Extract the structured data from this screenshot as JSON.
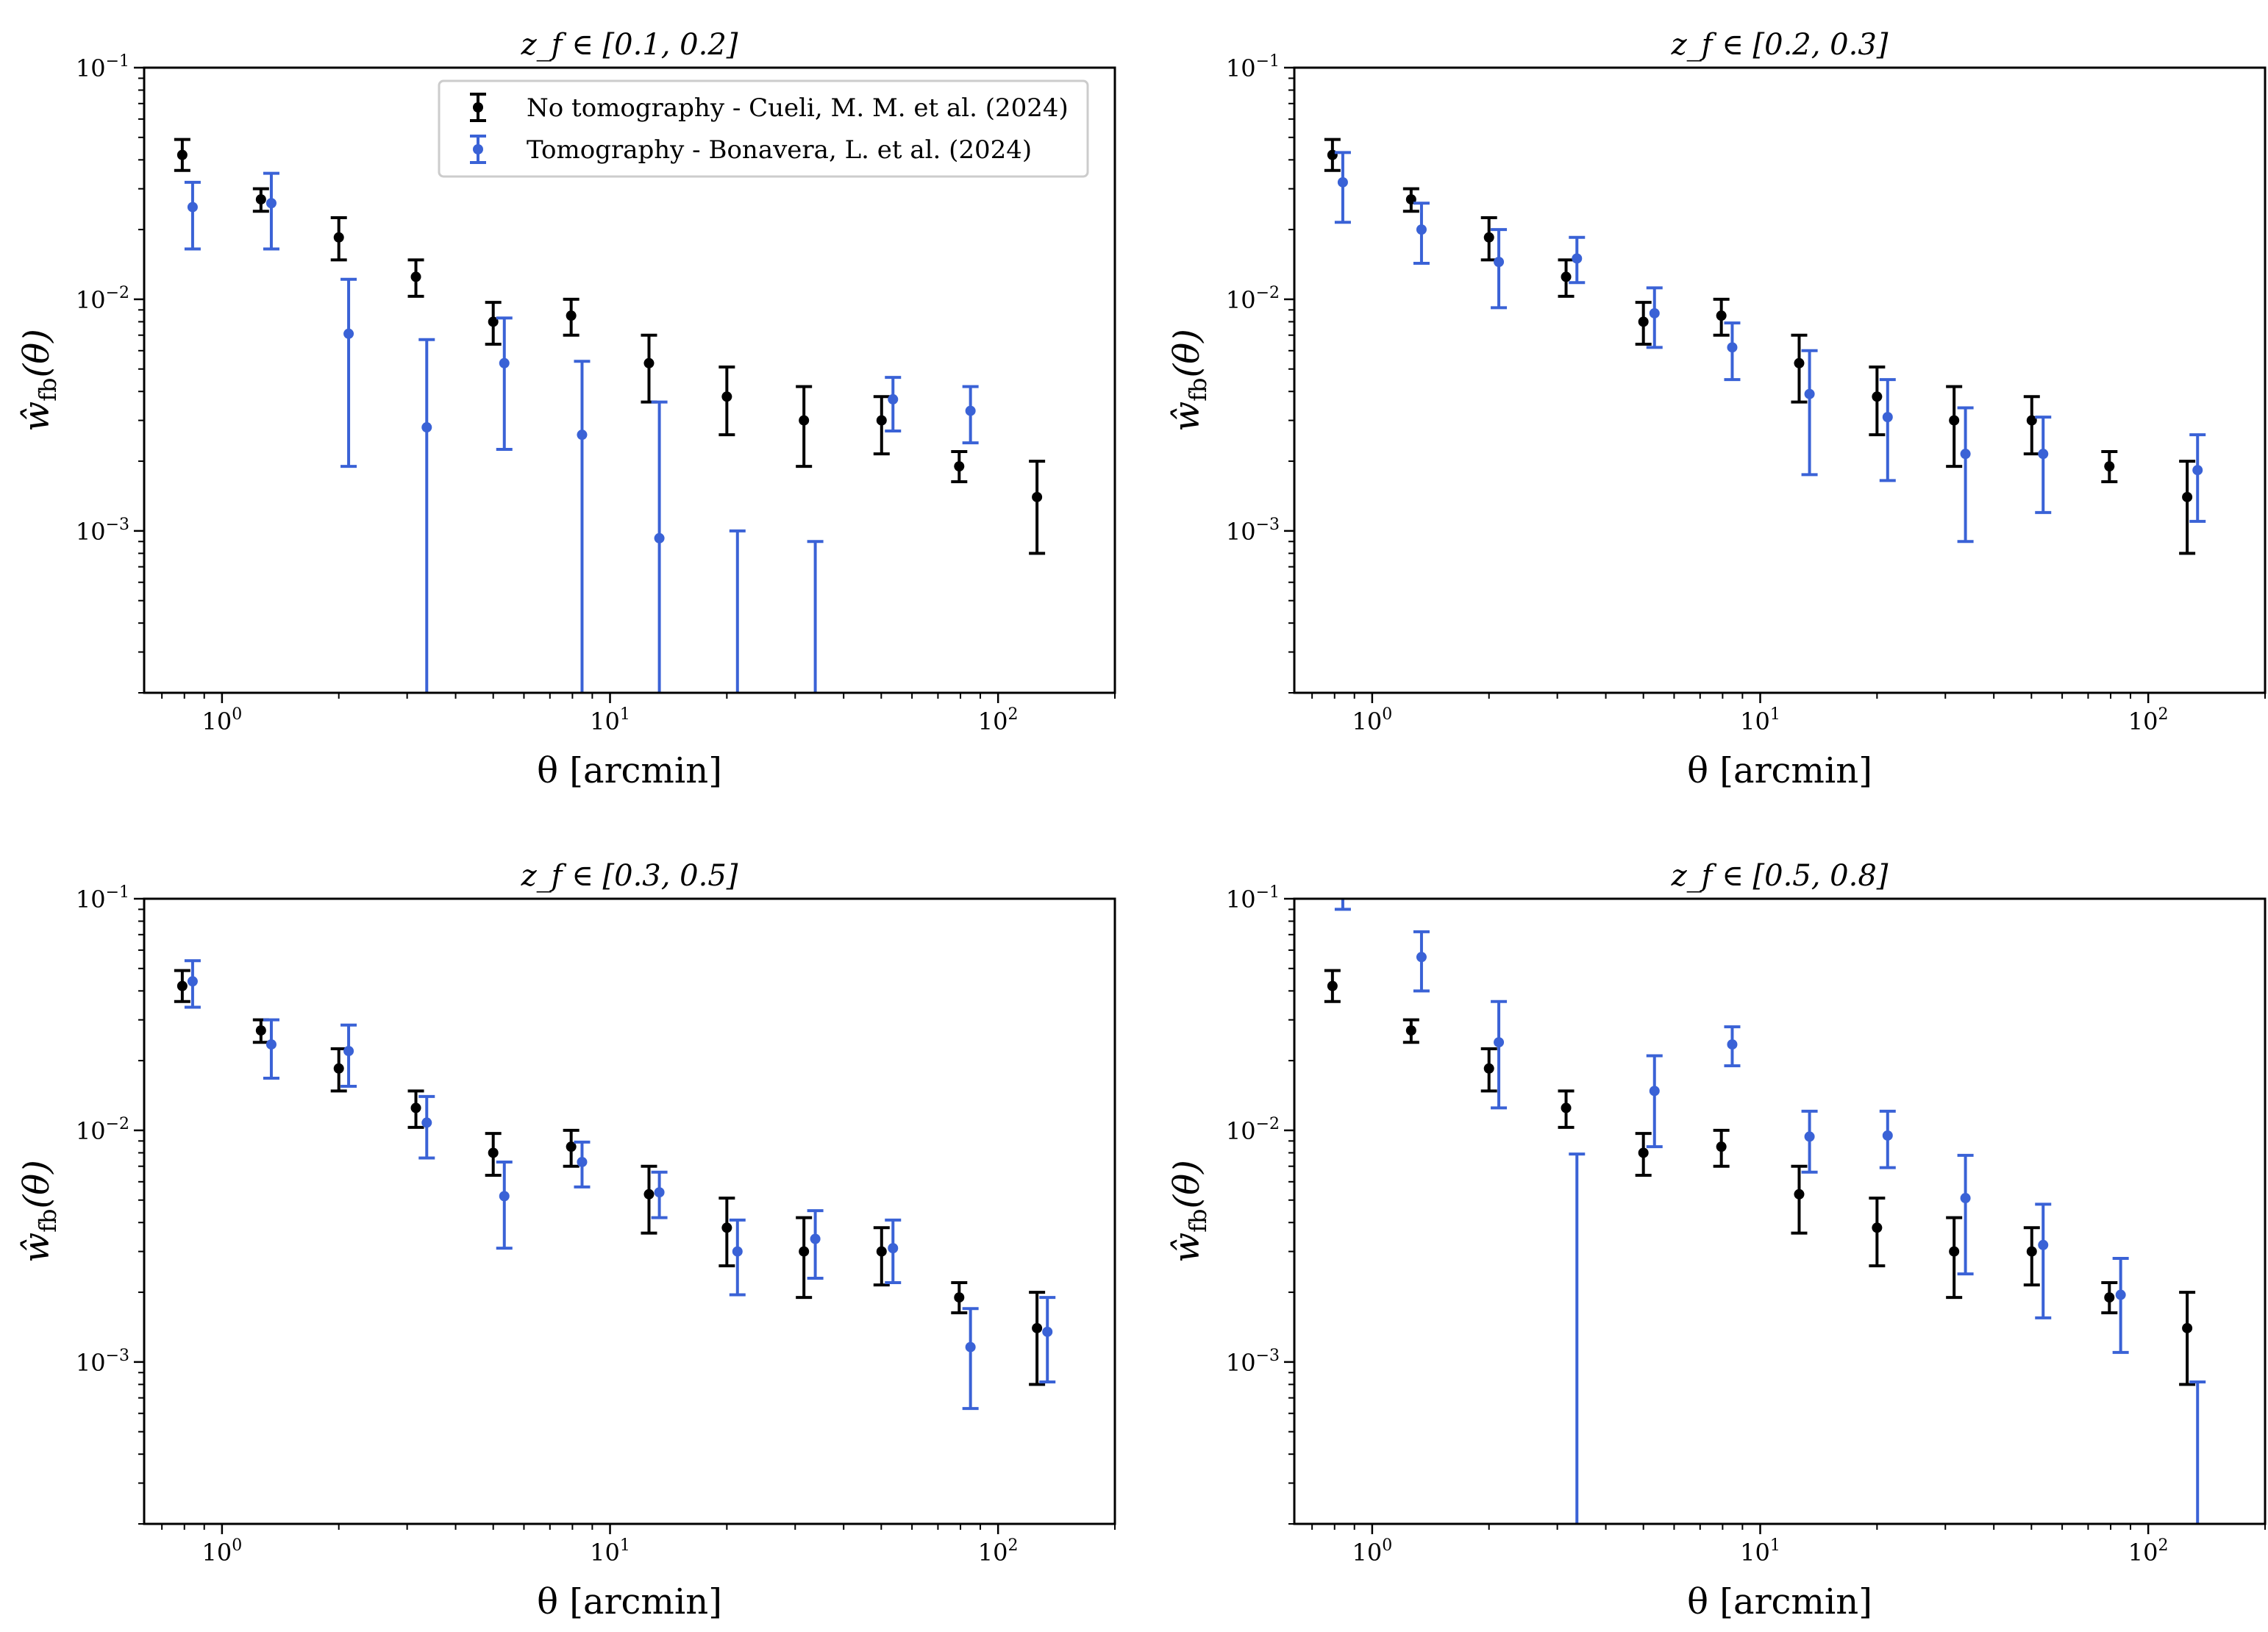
{
  "figure": {
    "xlabel": "θ [arcmin]",
    "ylabel": "ŵ",
    "ylabel_sub": "fb",
    "ylabel_arg": "(θ)"
  },
  "legend": {
    "entries": [
      {
        "label": "No tomography - Cueli, M. M. et al. (2024)",
        "color": "#000000"
      },
      {
        "label": "Tomography - Bonavera, L. et al. (2024)",
        "color": "#3a62d6"
      }
    ]
  },
  "chart_data": [
    {
      "type": "scatter",
      "title": "z_f ∈ [0.1, 0.2]",
      "xscale": "log",
      "yscale": "log",
      "xlim": [
        0.63,
        200
      ],
      "ylim": [
        0.0002,
        0.1
      ],
      "xticks": [
        {
          "label_base": "10",
          "label_exp": "0"
        },
        {
          "label_base": "10",
          "label_exp": "1"
        },
        {
          "label_base": "10",
          "label_exp": "2"
        }
      ],
      "yticks": [
        {
          "label_base": "10",
          "label_exp": "−1"
        },
        {
          "label_base": "10",
          "label_exp": "−2"
        },
        {
          "label_base": "10",
          "label_exp": "−3"
        }
      ],
      "series": [
        {
          "name": "No tomography - Cueli, M. M. et al. (2024)",
          "color": "#000000",
          "points": [
            {
              "x": 0.79,
              "y": 0.042,
              "lo": 0.036,
              "hi": 0.049
            },
            {
              "x": 1.26,
              "y": 0.027,
              "lo": 0.024,
              "hi": 0.03
            },
            {
              "x": 2.0,
              "y": 0.0185,
              "lo": 0.0148,
              "hi": 0.0225
            },
            {
              "x": 3.16,
              "y": 0.0125,
              "lo": 0.0103,
              "hi": 0.0148
            },
            {
              "x": 5.0,
              "y": 0.008,
              "lo": 0.0064,
              "hi": 0.0097
            },
            {
              "x": 7.94,
              "y": 0.0085,
              "lo": 0.007,
              "hi": 0.01
            },
            {
              "x": 12.6,
              "y": 0.0053,
              "lo": 0.0036,
              "hi": 0.007
            },
            {
              "x": 20.0,
              "y": 0.0038,
              "lo": 0.0026,
              "hi": 0.0051
            },
            {
              "x": 31.6,
              "y": 0.003,
              "lo": 0.0019,
              "hi": 0.0042
            },
            {
              "x": 50.1,
              "y": 0.003,
              "lo": 0.00215,
              "hi": 0.0038
            },
            {
              "x": 79.4,
              "y": 0.0019,
              "lo": 0.00163,
              "hi": 0.0022
            },
            {
              "x": 126,
              "y": 0.0014,
              "lo": 0.0008,
              "hi": 0.002
            }
          ]
        },
        {
          "name": "Tomography - Bonavera, L. et al. (2024)",
          "color": "#3a62d6",
          "points": [
            {
              "x": 0.84,
              "y": 0.025,
              "lo": 0.0165,
              "hi": 0.032
            },
            {
              "x": 1.34,
              "y": 0.026,
              "lo": 0.0165,
              "hi": 0.035
            },
            {
              "x": 2.12,
              "y": 0.0071,
              "lo": 0.0019,
              "hi": 0.0122
            },
            {
              "x": 3.37,
              "y": 0.0028,
              "lo": 0.0002,
              "hi": 0.0067
            },
            {
              "x": 5.34,
              "y": 0.0053,
              "lo": 0.00225,
              "hi": 0.0083
            },
            {
              "x": 8.47,
              "y": 0.0026,
              "lo": 0.0002,
              "hi": 0.0054
            },
            {
              "x": 13.4,
              "y": 0.00093,
              "lo": 0.0002,
              "hi": 0.0036
            },
            {
              "x": 21.3,
              "y": null,
              "lo": 0.0002,
              "hi": 0.001
            },
            {
              "x": 33.8,
              "y": null,
              "lo": 0.0002,
              "hi": 0.0009
            },
            {
              "x": 53.6,
              "y": 0.0037,
              "lo": 0.0027,
              "hi": 0.0046
            },
            {
              "x": 84.9,
              "y": 0.0033,
              "lo": 0.0024,
              "hi": 0.0042
            }
          ]
        }
      ]
    },
    {
      "type": "scatter",
      "title": "z_f ∈ [0.2, 0.3]",
      "xscale": "log",
      "yscale": "log",
      "xlim": [
        0.63,
        200
      ],
      "ylim": [
        0.0002,
        0.1
      ],
      "xticks": [
        {
          "label_base": "10",
          "label_exp": "0"
        },
        {
          "label_base": "10",
          "label_exp": "1"
        },
        {
          "label_base": "10",
          "label_exp": "2"
        }
      ],
      "yticks": [
        {
          "label_base": "10",
          "label_exp": "−1"
        },
        {
          "label_base": "10",
          "label_exp": "−2"
        },
        {
          "label_base": "10",
          "label_exp": "−3"
        }
      ],
      "series": [
        {
          "name": "No tomography - Cueli, M. M. et al. (2024)",
          "color": "#000000",
          "points": [
            {
              "x": 0.79,
              "y": 0.042,
              "lo": 0.036,
              "hi": 0.049
            },
            {
              "x": 1.26,
              "y": 0.027,
              "lo": 0.024,
              "hi": 0.03
            },
            {
              "x": 2.0,
              "y": 0.0185,
              "lo": 0.0148,
              "hi": 0.0225
            },
            {
              "x": 3.16,
              "y": 0.0125,
              "lo": 0.0103,
              "hi": 0.0148
            },
            {
              "x": 5.0,
              "y": 0.008,
              "lo": 0.0064,
              "hi": 0.0097
            },
            {
              "x": 7.94,
              "y": 0.0085,
              "lo": 0.007,
              "hi": 0.01
            },
            {
              "x": 12.6,
              "y": 0.0053,
              "lo": 0.0036,
              "hi": 0.007
            },
            {
              "x": 20.0,
              "y": 0.0038,
              "lo": 0.0026,
              "hi": 0.0051
            },
            {
              "x": 31.6,
              "y": 0.003,
              "lo": 0.0019,
              "hi": 0.0042
            },
            {
              "x": 50.1,
              "y": 0.003,
              "lo": 0.00215,
              "hi": 0.0038
            },
            {
              "x": 79.4,
              "y": 0.0019,
              "lo": 0.00163,
              "hi": 0.0022
            },
            {
              "x": 126,
              "y": 0.0014,
              "lo": 0.0008,
              "hi": 0.002
            }
          ]
        },
        {
          "name": "Tomography - Bonavera, L. et al. (2024)",
          "color": "#3a62d6",
          "points": [
            {
              "x": 0.84,
              "y": 0.032,
              "lo": 0.0215,
              "hi": 0.043
            },
            {
              "x": 1.34,
              "y": 0.02,
              "lo": 0.0143,
              "hi": 0.026
            },
            {
              "x": 2.12,
              "y": 0.0145,
              "lo": 0.0092,
              "hi": 0.02
            },
            {
              "x": 3.37,
              "y": 0.015,
              "lo": 0.0118,
              "hi": 0.0185
            },
            {
              "x": 5.34,
              "y": 0.0087,
              "lo": 0.0062,
              "hi": 0.0112
            },
            {
              "x": 8.47,
              "y": 0.0062,
              "lo": 0.0045,
              "hi": 0.0079
            },
            {
              "x": 13.4,
              "y": 0.0039,
              "lo": 0.00175,
              "hi": 0.006
            },
            {
              "x": 21.3,
              "y": 0.0031,
              "lo": 0.00165,
              "hi": 0.0045
            },
            {
              "x": 33.8,
              "y": 0.00215,
              "lo": 0.0009,
              "hi": 0.0034
            },
            {
              "x": 53.6,
              "y": 0.00215,
              "lo": 0.0012,
              "hi": 0.0031
            },
            {
              "x": 134,
              "y": 0.00183,
              "lo": 0.0011,
              "hi": 0.0026
            }
          ]
        }
      ]
    },
    {
      "type": "scatter",
      "title": "z_f ∈ [0.3, 0.5]",
      "xscale": "log",
      "yscale": "log",
      "xlim": [
        0.63,
        200
      ],
      "ylim": [
        0.0002,
        0.1
      ],
      "xticks": [
        {
          "label_base": "10",
          "label_exp": "0"
        },
        {
          "label_base": "10",
          "label_exp": "1"
        },
        {
          "label_base": "10",
          "label_exp": "2"
        }
      ],
      "yticks": [
        {
          "label_base": "10",
          "label_exp": "−1"
        },
        {
          "label_base": "10",
          "label_exp": "−2"
        },
        {
          "label_base": "10",
          "label_exp": "−3"
        }
      ],
      "series": [
        {
          "name": "No tomography - Cueli, M. M. et al. (2024)",
          "color": "#000000",
          "points": [
            {
              "x": 0.79,
              "y": 0.042,
              "lo": 0.036,
              "hi": 0.049
            },
            {
              "x": 1.26,
              "y": 0.027,
              "lo": 0.024,
              "hi": 0.03
            },
            {
              "x": 2.0,
              "y": 0.0185,
              "lo": 0.0148,
              "hi": 0.0225
            },
            {
              "x": 3.16,
              "y": 0.0125,
              "lo": 0.0103,
              "hi": 0.0148
            },
            {
              "x": 5.0,
              "y": 0.008,
              "lo": 0.0064,
              "hi": 0.0097
            },
            {
              "x": 7.94,
              "y": 0.0085,
              "lo": 0.007,
              "hi": 0.01
            },
            {
              "x": 12.6,
              "y": 0.0053,
              "lo": 0.0036,
              "hi": 0.007
            },
            {
              "x": 20.0,
              "y": 0.0038,
              "lo": 0.0026,
              "hi": 0.0051
            },
            {
              "x": 31.6,
              "y": 0.003,
              "lo": 0.0019,
              "hi": 0.0042
            },
            {
              "x": 50.1,
              "y": 0.003,
              "lo": 0.00215,
              "hi": 0.0038
            },
            {
              "x": 79.4,
              "y": 0.0019,
              "lo": 0.00163,
              "hi": 0.0022
            },
            {
              "x": 126,
              "y": 0.0014,
              "lo": 0.0008,
              "hi": 0.002
            }
          ]
        },
        {
          "name": "Tomography - Bonavera, L. et al. (2024)",
          "color": "#3a62d6",
          "points": [
            {
              "x": 0.84,
              "y": 0.044,
              "lo": 0.034,
              "hi": 0.054
            },
            {
              "x": 1.34,
              "y": 0.0235,
              "lo": 0.0168,
              "hi": 0.03
            },
            {
              "x": 2.12,
              "y": 0.022,
              "lo": 0.0155,
              "hi": 0.0285
            },
            {
              "x": 3.37,
              "y": 0.0108,
              "lo": 0.0076,
              "hi": 0.014
            },
            {
              "x": 5.34,
              "y": 0.0052,
              "lo": 0.0031,
              "hi": 0.0073
            },
            {
              "x": 8.47,
              "y": 0.0073,
              "lo": 0.0057,
              "hi": 0.0089
            },
            {
              "x": 13.4,
              "y": 0.0054,
              "lo": 0.0042,
              "hi": 0.0066
            },
            {
              "x": 21.3,
              "y": 0.003,
              "lo": 0.00195,
              "hi": 0.0041
            },
            {
              "x": 33.8,
              "y": 0.0034,
              "lo": 0.0023,
              "hi": 0.0045
            },
            {
              "x": 53.6,
              "y": 0.0031,
              "lo": 0.0022,
              "hi": 0.0041
            },
            {
              "x": 84.9,
              "y": 0.00116,
              "lo": 0.00063,
              "hi": 0.0017
            },
            {
              "x": 134,
              "y": 0.00135,
              "lo": 0.00082,
              "hi": 0.0019
            }
          ]
        }
      ]
    },
    {
      "type": "scatter",
      "title": "z_f ∈ [0.5, 0.8]",
      "xscale": "log",
      "yscale": "log",
      "xlim": [
        0.63,
        200
      ],
      "ylim": [
        0.0002,
        0.1
      ],
      "xticks": [
        {
          "label_base": "10",
          "label_exp": "0"
        },
        {
          "label_base": "10",
          "label_exp": "1"
        },
        {
          "label_base": "10",
          "label_exp": "2"
        }
      ],
      "yticks": [
        {
          "label_base": "10",
          "label_exp": "−1"
        },
        {
          "label_base": "10",
          "label_exp": "−2"
        },
        {
          "label_base": "10",
          "label_exp": "−3"
        }
      ],
      "series": [
        {
          "name": "No tomography - Cueli, M. M. et al. (2024)",
          "color": "#000000",
          "points": [
            {
              "x": 0.79,
              "y": 0.042,
              "lo": 0.036,
              "hi": 0.049
            },
            {
              "x": 1.26,
              "y": 0.027,
              "lo": 0.024,
              "hi": 0.03
            },
            {
              "x": 2.0,
              "y": 0.0185,
              "lo": 0.0148,
              "hi": 0.0225
            },
            {
              "x": 3.16,
              "y": 0.0125,
              "lo": 0.0103,
              "hi": 0.0148
            },
            {
              "x": 5.0,
              "y": 0.008,
              "lo": 0.0064,
              "hi": 0.0097
            },
            {
              "x": 7.94,
              "y": 0.0085,
              "lo": 0.007,
              "hi": 0.01
            },
            {
              "x": 12.6,
              "y": 0.0053,
              "lo": 0.0036,
              "hi": 0.007
            },
            {
              "x": 20.0,
              "y": 0.0038,
              "lo": 0.0026,
              "hi": 0.0051
            },
            {
              "x": 31.6,
              "y": 0.003,
              "lo": 0.0019,
              "hi": 0.0042
            },
            {
              "x": 50.1,
              "y": 0.003,
              "lo": 0.00215,
              "hi": 0.0038
            },
            {
              "x": 79.4,
              "y": 0.0019,
              "lo": 0.00163,
              "hi": 0.0022
            },
            {
              "x": 126,
              "y": 0.0014,
              "lo": 0.0008,
              "hi": 0.002
            }
          ]
        },
        {
          "name": "Tomography - Bonavera, L. et al. (2024)",
          "color": "#3a62d6",
          "points": [
            {
              "x": 0.84,
              "y": null,
              "lo": 0.09,
              "hi": 0.1
            },
            {
              "x": 1.34,
              "y": 0.056,
              "lo": 0.04,
              "hi": 0.072
            },
            {
              "x": 2.12,
              "y": 0.024,
              "lo": 0.0125,
              "hi": 0.036
            },
            {
              "x": 3.37,
              "y": null,
              "lo": 0.0002,
              "hi": 0.0079
            },
            {
              "x": 5.34,
              "y": 0.0148,
              "lo": 0.0085,
              "hi": 0.021
            },
            {
              "x": 8.47,
              "y": 0.0235,
              "lo": 0.019,
              "hi": 0.028
            },
            {
              "x": 13.4,
              "y": 0.0094,
              "lo": 0.0066,
              "hi": 0.0121
            },
            {
              "x": 21.3,
              "y": 0.0095,
              "lo": 0.0069,
              "hi": 0.0121
            },
            {
              "x": 33.8,
              "y": 0.0051,
              "lo": 0.0024,
              "hi": 0.0078
            },
            {
              "x": 53.6,
              "y": 0.0032,
              "lo": 0.00155,
              "hi": 0.0048
            },
            {
              "x": 84.9,
              "y": 0.00195,
              "lo": 0.0011,
              "hi": 0.0028
            },
            {
              "x": 134,
              "y": null,
              "lo": 0.0002,
              "hi": 0.00082
            }
          ]
        }
      ]
    }
  ]
}
